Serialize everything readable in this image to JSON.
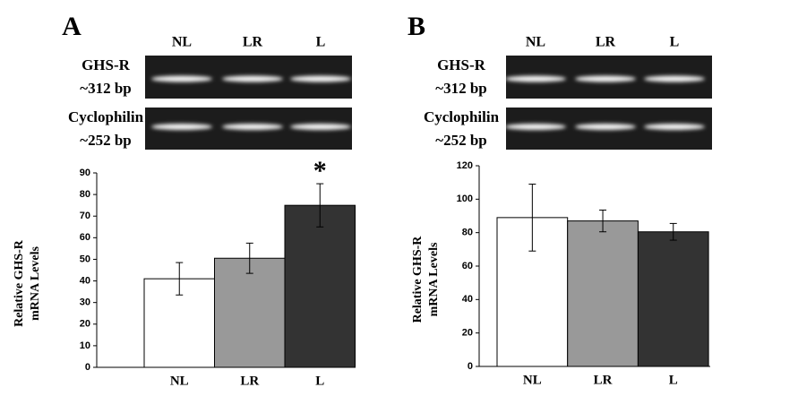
{
  "chart_data": [
    {
      "type": "bar",
      "panel_label": "A",
      "gel": {
        "lanes": [
          "NL",
          "LR",
          "L"
        ],
        "rows": [
          {
            "name": "GHS-R",
            "size": "~312 bp"
          },
          {
            "name": "Cyclophilin",
            "size": "~252 bp"
          }
        ]
      },
      "ylabel": [
        "Relative  GHS-R",
        "mRNA Levels"
      ],
      "categories": [
        "NL",
        "LR",
        "L"
      ],
      "values": [
        41,
        50.5,
        75
      ],
      "errors": [
        7.5,
        7,
        10
      ],
      "colors": [
        "#ffffff",
        "#999999",
        "#333333"
      ],
      "annotations": [
        {
          "text": "*",
          "category": "L"
        }
      ],
      "ylim": [
        0,
        90
      ],
      "yticks": [
        0,
        10,
        20,
        30,
        40,
        50,
        60,
        70,
        80,
        90
      ]
    },
    {
      "type": "bar",
      "panel_label": "B",
      "gel": {
        "lanes": [
          "NL",
          "LR",
          "L"
        ],
        "rows": [
          {
            "name": "GHS-R",
            "size": "~312 bp"
          },
          {
            "name": "Cyclophilin",
            "size": "~252 bp"
          }
        ]
      },
      "ylabel": [
        "Relative  GHS-R",
        "mRNA Levels"
      ],
      "categories": [
        "NL",
        "LR",
        "L"
      ],
      "values": [
        89,
        87,
        80.5
      ],
      "errors": [
        20,
        6.5,
        5
      ],
      "colors": [
        "#ffffff",
        "#999999",
        "#333333"
      ],
      "annotations": [],
      "ylim": [
        0,
        120
      ],
      "yticks": [
        0,
        20,
        40,
        60,
        80,
        100,
        120
      ]
    }
  ]
}
